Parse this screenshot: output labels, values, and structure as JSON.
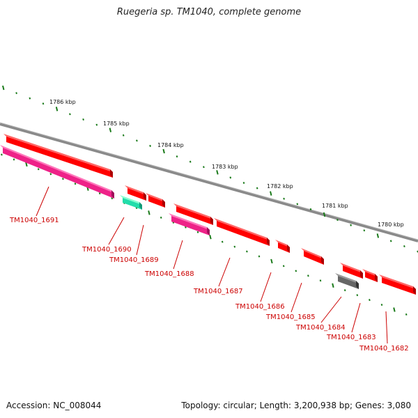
{
  "title": "Ruegeria sp. TM1040, complete genome",
  "footer": {
    "accession": "Accession: NC_008044",
    "summary": "Topology: circular; Length: 3,200,938 bp; Genes: 3,080"
  },
  "colors": {
    "backbone": "#8a8a8a",
    "tick": "#1a7a1a",
    "cds": "#ff0000",
    "pink": "#ee2288",
    "green": "#22ddaa",
    "gray": "#666666",
    "label": "#cc0000"
  },
  "ruler": [
    {
      "label": "1786 kbp"
    },
    {
      "label": "1785 kbp"
    },
    {
      "label": "1784 kbp"
    },
    {
      "label": "1783 kbp"
    },
    {
      "label": "1782 kbp"
    },
    {
      "label": "1781 kbp"
    },
    {
      "label": "1780 kbp"
    }
  ],
  "genes": [
    {
      "name": "TM1040_1691",
      "color": "red"
    },
    {
      "name": "TM1040_1691",
      "color": "pink"
    },
    {
      "name": "TM1040_1690",
      "color": "red"
    },
    {
      "name": "TM1040_1690",
      "color": "green"
    },
    {
      "name": "TM1040_1689",
      "color": "red"
    },
    {
      "name": "TM1040_1688",
      "color": "red"
    },
    {
      "name": "TM1040_1688",
      "color": "pink"
    },
    {
      "name": "TM1040_1687",
      "color": "red"
    },
    {
      "name": "TM1040_1686",
      "color": "red"
    },
    {
      "name": "TM1040_1685",
      "color": "red"
    },
    {
      "name": "TM1040_1684",
      "color": "red"
    },
    {
      "name": "TM1040_1684",
      "color": "gray"
    },
    {
      "name": "TM1040_1683",
      "color": "red"
    },
    {
      "name": "TM1040_1682",
      "color": "red"
    }
  ],
  "gene_labels": [
    "TM1040_1691",
    "TM1040_1690",
    "TM1040_1689",
    "TM1040_1688",
    "TM1040_1687",
    "TM1040_1686",
    "TM1040_1685",
    "TM1040_1684",
    "TM1040_1683",
    "TM1040_1682"
  ]
}
